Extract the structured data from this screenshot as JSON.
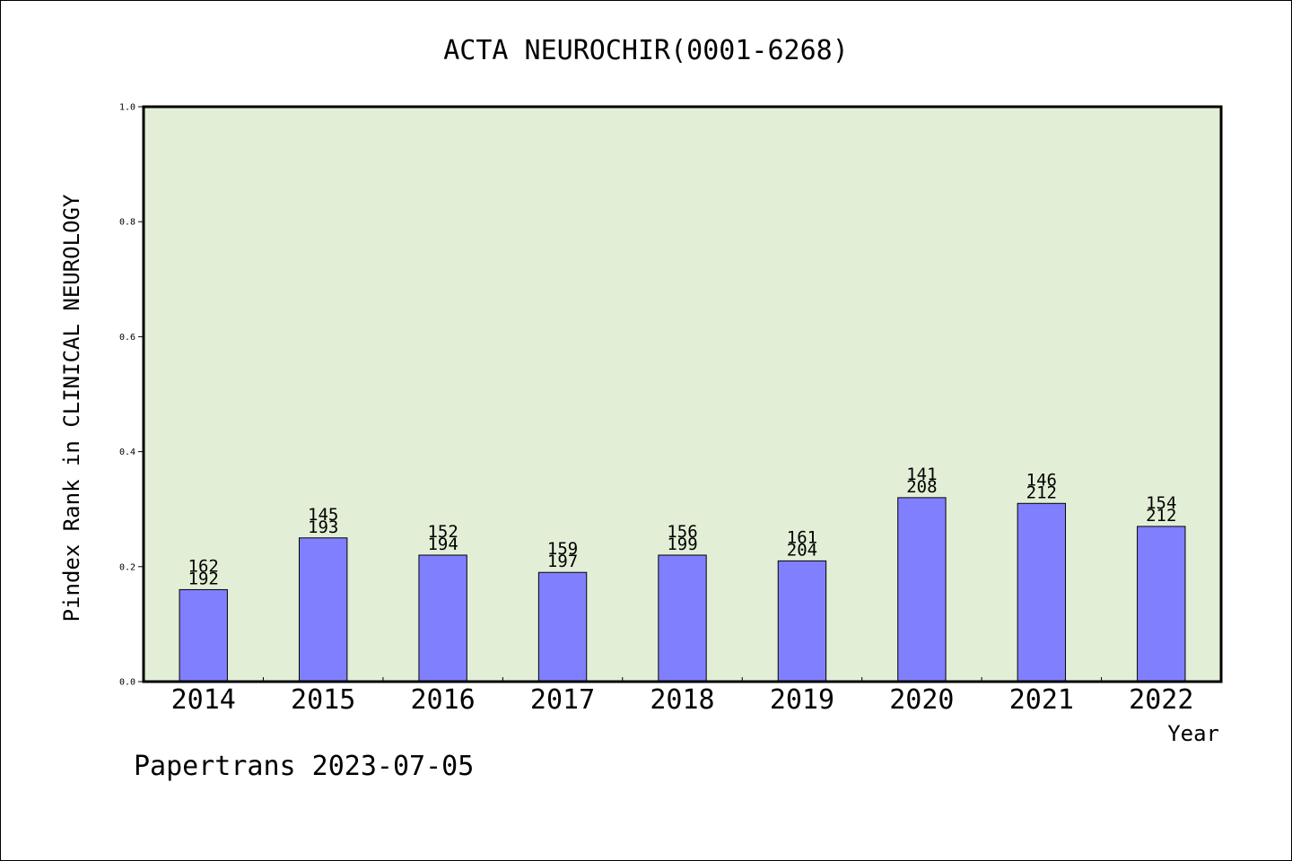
{
  "chart_data": {
    "type": "bar",
    "title": "ACTA NEUROCHIR(0001-6268)",
    "xlabel": "Year",
    "ylabel": "Pindex Rank in CLINICAL NEUROLOGY",
    "footer": "Papertrans 2023-07-05",
    "ylim": [
      0,
      1.0
    ],
    "yticks": [
      "0.0",
      "0.2",
      "0.4",
      "0.6",
      "0.8",
      "1.0"
    ],
    "grid": false,
    "colors": {
      "bar": "#8080ff",
      "plot_bg": "#e2efd6",
      "axis": "#000000"
    },
    "categories": [
      "2014",
      "2015",
      "2016",
      "2017",
      "2018",
      "2019",
      "2020",
      "2021",
      "2022"
    ],
    "values": [
      0.16,
      0.25,
      0.22,
      0.19,
      0.22,
      0.21,
      0.32,
      0.31,
      0.27
    ],
    "rank_labels": [
      "162",
      "145",
      "152",
      "159",
      "156",
      "161",
      "141",
      "146",
      "154"
    ],
    "total_labels": [
      "192",
      "193",
      "194",
      "197",
      "199",
      "204",
      "208",
      "212",
      "212"
    ]
  }
}
